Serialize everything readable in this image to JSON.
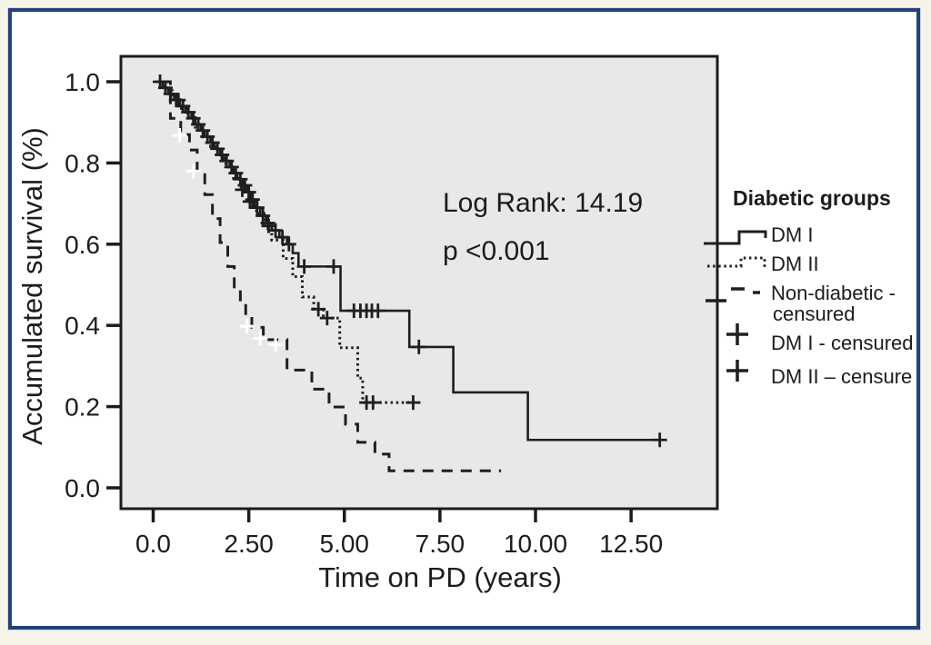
{
  "chart_data": {
    "type": "line",
    "subtype": "kaplan-meier-step",
    "title": "",
    "xlabel": "Time on PD (years)",
    "ylabel": "Accumulated survival (%)",
    "xlim": [
      -0.85,
      14.8
    ],
    "ylim": [
      -0.05,
      1.06
    ],
    "grid": false,
    "plot_bg": "#e8e8e6",
    "frame_color": "#24427a",
    "curve_color": "#1f1f1f",
    "white_mark_color": "#ffffff",
    "xticks": {
      "values": [
        0,
        2.5,
        5,
        7.5,
        10,
        12.5
      ],
      "labels": [
        "0.0",
        "2.50",
        "5.00",
        "7.50",
        "10.00",
        "12.50"
      ]
    },
    "yticks": {
      "values": [
        0,
        0.2,
        0.4,
        0.6,
        0.8,
        1.0
      ],
      "labels": [
        "0.0",
        "0.2",
        "0.4",
        "0.6",
        "0.8",
        "1.0"
      ]
    },
    "annotations": [
      {
        "text": "Log Rank: 14.19"
      },
      {
        "text": "p <0.001"
      }
    ],
    "series": [
      {
        "name": "DM I",
        "style": "solid",
        "steps": [
          [
            0.1,
            1.0
          ],
          [
            0.25,
            0.985
          ],
          [
            0.4,
            0.97
          ],
          [
            0.55,
            0.955
          ],
          [
            0.7,
            0.94
          ],
          [
            0.85,
            0.925
          ],
          [
            1.0,
            0.91
          ],
          [
            1.1,
            0.895
          ],
          [
            1.25,
            0.88
          ],
          [
            1.35,
            0.865
          ],
          [
            1.5,
            0.85
          ],
          [
            1.6,
            0.835
          ],
          [
            1.75,
            0.82
          ],
          [
            1.85,
            0.805
          ],
          [
            2.0,
            0.79
          ],
          [
            2.1,
            0.775
          ],
          [
            2.2,
            0.76
          ],
          [
            2.35,
            0.745
          ],
          [
            2.45,
            0.728
          ],
          [
            2.55,
            0.71
          ],
          [
            2.65,
            0.69
          ],
          [
            2.8,
            0.67
          ],
          [
            2.95,
            0.652
          ],
          [
            3.1,
            0.634
          ],
          [
            3.3,
            0.617
          ],
          [
            3.5,
            0.6
          ],
          [
            3.65,
            0.578
          ],
          [
            3.8,
            0.545
          ],
          [
            4.9,
            0.436
          ],
          [
            6.7,
            0.347
          ],
          [
            7.85,
            0.235
          ],
          [
            9.8,
            0.118
          ],
          [
            13.25,
            0.118
          ]
        ]
      },
      {
        "name": "DM II",
        "style": "dotted",
        "steps": [
          [
            0.1,
            1.0
          ],
          [
            0.3,
            0.978
          ],
          [
            0.5,
            0.956
          ],
          [
            0.7,
            0.934
          ],
          [
            0.9,
            0.912
          ],
          [
            1.1,
            0.888
          ],
          [
            1.3,
            0.864
          ],
          [
            1.5,
            0.84
          ],
          [
            1.7,
            0.815
          ],
          [
            1.9,
            0.79
          ],
          [
            2.1,
            0.762
          ],
          [
            2.3,
            0.734
          ],
          [
            2.5,
            0.705
          ],
          [
            2.7,
            0.676
          ],
          [
            2.9,
            0.645
          ],
          [
            3.1,
            0.61
          ],
          [
            3.4,
            0.565
          ],
          [
            3.65,
            0.52
          ],
          [
            3.9,
            0.47
          ],
          [
            4.2,
            0.44
          ],
          [
            4.45,
            0.418
          ],
          [
            4.88,
            0.345
          ],
          [
            5.35,
            0.27
          ],
          [
            5.48,
            0.21
          ],
          [
            6.95,
            0.21
          ]
        ]
      },
      {
        "name": "Non-diabetic",
        "style": "dashed",
        "steps": [
          [
            0.25,
            1.0
          ],
          [
            0.45,
            0.91
          ],
          [
            0.72,
            0.87
          ],
          [
            0.95,
            0.832
          ],
          [
            1.15,
            0.78
          ],
          [
            1.35,
            0.722
          ],
          [
            1.55,
            0.663
          ],
          [
            1.75,
            0.604
          ],
          [
            1.95,
            0.545
          ],
          [
            2.12,
            0.49
          ],
          [
            2.28,
            0.458
          ],
          [
            2.42,
            0.425
          ],
          [
            2.58,
            0.395
          ],
          [
            2.88,
            0.365
          ],
          [
            3.5,
            0.29
          ],
          [
            4.15,
            0.243
          ],
          [
            4.6,
            0.199
          ],
          [
            5.03,
            0.157
          ],
          [
            5.35,
            0.112
          ],
          [
            5.8,
            0.083
          ],
          [
            6.17,
            0.042
          ],
          [
            9.1,
            0.042
          ]
        ]
      }
    ],
    "censor_marks": [
      {
        "series": "DM I",
        "color": "dark",
        "points": [
          [
            0.18,
            1.0
          ],
          [
            0.32,
            0.985
          ],
          [
            0.46,
            0.97
          ],
          [
            0.6,
            0.955
          ],
          [
            0.66,
            0.955
          ],
          [
            0.78,
            0.94
          ],
          [
            0.92,
            0.925
          ],
          [
            1.05,
            0.91
          ],
          [
            1.18,
            0.895
          ],
          [
            1.3,
            0.88
          ],
          [
            1.42,
            0.865
          ],
          [
            1.55,
            0.85
          ],
          [
            1.68,
            0.835
          ],
          [
            1.8,
            0.82
          ],
          [
            1.92,
            0.805
          ],
          [
            2.05,
            0.79
          ],
          [
            2.16,
            0.775
          ],
          [
            2.28,
            0.76
          ],
          [
            2.4,
            0.745
          ],
          [
            2.5,
            0.728
          ],
          [
            2.6,
            0.71
          ],
          [
            2.72,
            0.69
          ],
          [
            2.87,
            0.67
          ],
          [
            3.0,
            0.652
          ],
          [
            3.2,
            0.634
          ],
          [
            3.38,
            0.617
          ],
          [
            3.55,
            0.6
          ],
          [
            3.95,
            0.545
          ],
          [
            4.72,
            0.545
          ],
          [
            5.25,
            0.436
          ],
          [
            5.42,
            0.436
          ],
          [
            5.58,
            0.436
          ],
          [
            5.72,
            0.436
          ],
          [
            5.88,
            0.436
          ],
          [
            6.95,
            0.347
          ],
          [
            13.25,
            0.118
          ]
        ]
      },
      {
        "series": "DM II",
        "color": "dark",
        "points": [
          [
            2.33,
            0.734
          ],
          [
            2.53,
            0.705
          ],
          [
            3.02,
            0.645
          ],
          [
            4.32,
            0.44
          ],
          [
            4.55,
            0.418
          ],
          [
            5.58,
            0.21
          ],
          [
            5.75,
            0.21
          ],
          [
            6.8,
            0.21
          ]
        ]
      },
      {
        "series": "Non-diabetic",
        "color": "white",
        "points": [
          [
            0.69,
            0.868
          ],
          [
            1.05,
            0.78
          ],
          [
            2.45,
            0.398
          ],
          [
            2.8,
            0.368
          ],
          [
            3.2,
            0.352
          ]
        ]
      }
    ],
    "legend": {
      "title": "Diabetic groups",
      "position": "right",
      "entries": [
        {
          "label": "DM I",
          "swatch": "solid-step"
        },
        {
          "label": "DM II",
          "swatch": "dotted-step"
        },
        {
          "label": "Non-diabetic -",
          "label2": "censured",
          "swatch": "dashed-step"
        },
        {
          "label": "DM I - censured",
          "swatch": "plus"
        },
        {
          "label": "DM II – censure",
          "swatch": "plus"
        }
      ]
    }
  }
}
